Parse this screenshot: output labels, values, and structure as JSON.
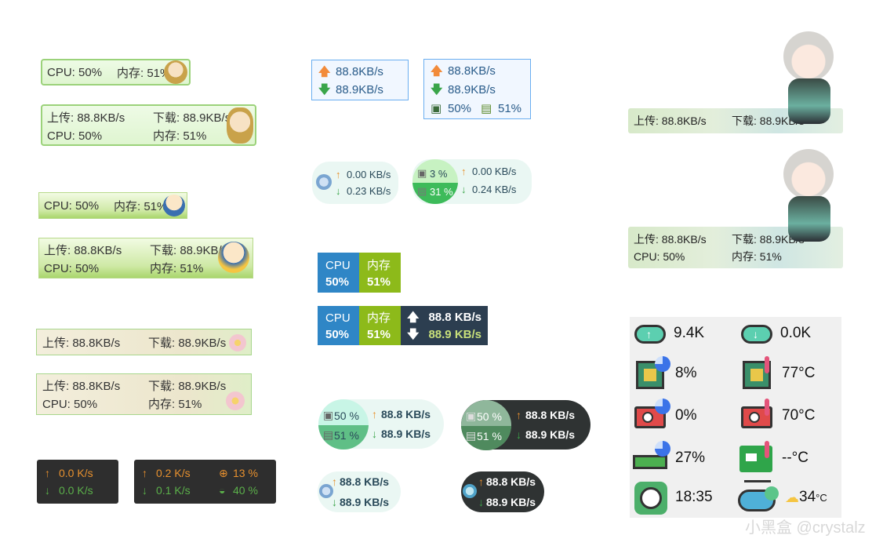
{
  "w1": {
    "cpu": "CPU: 50%",
    "mem": "内存: 51%"
  },
  "w2": {
    "up": "上传: 88.8KB/s",
    "down": "下载: 88.9KB/s",
    "cpu": "CPU: 50%",
    "mem": "内存: 51%"
  },
  "w3": {
    "cpu": "CPU: 50%",
    "mem": "内存: 51%"
  },
  "w4": {
    "up": "上传: 88.8KB/s",
    "down": "下载: 88.9KB/s",
    "cpu": "CPU: 50%",
    "mem": "内存: 51%"
  },
  "w5": {
    "up": "上传: 88.8KB/s",
    "down": "下载: 88.9KB/s"
  },
  "w6": {
    "up": "上传: 88.8KB/s",
    "down": "下载: 88.9KB/s",
    "cpu": "CPU: 50%",
    "mem": "内存: 51%"
  },
  "w7": {
    "up": "0.0 K/s",
    "down": "0.0 K/s"
  },
  "w8": {
    "up": "0.2 K/s",
    "down": "0.1 K/s",
    "cpu": "13 %",
    "mem": "40 %"
  },
  "b1": {
    "up": "88.8KB/s",
    "down": "88.9KB/s"
  },
  "b2": {
    "up": "88.8KB/s",
    "down": "88.9KB/s",
    "cpu": "50%",
    "mem": "51%"
  },
  "p1": {
    "up": "0.00 KB/s",
    "down": "0.23 KB/s"
  },
  "p2": {
    "cpu": "3 %",
    "mem": "31 %",
    "up": "0.00 KB/s",
    "down": "0.24 KB/s"
  },
  "t1": {
    "cpu_label": "CPU",
    "cpu_val": "50%",
    "mem_label": "内存",
    "mem_val": "51%"
  },
  "t2": {
    "cpu_label": "CPU",
    "cpu_val": "50%",
    "mem_label": "内存",
    "mem_val": "51%",
    "up": "88.8 KB/s",
    "down": "88.9 KB/s"
  },
  "c1": {
    "cpu": "50 %",
    "mem": "51 %",
    "up": "88.8 KB/s",
    "down": "88.9 KB/s"
  },
  "c2": {
    "cpu": "50 %",
    "mem": "51 %",
    "up": "88.8 KB/s",
    "down": "88.9 KB/s"
  },
  "c3": {
    "up": "88.8 KB/s",
    "down": "88.9 KB/s"
  },
  "c4": {
    "up": "88.8 KB/s",
    "down": "88.9 KB/s"
  },
  "k1": {
    "up": "上传: 88.8KB/s",
    "down": "下载: 88.9KB/s"
  },
  "k2": {
    "up": "上传: 88.8KB/s",
    "down": "下载: 88.9KB/s",
    "cpu": "CPU: 50%",
    "mem": "内存: 51%"
  },
  "panel": {
    "upload": "9.4K",
    "download": "0.0K",
    "cpu_usage": "8%",
    "cpu_temp": "77°C",
    "gpu_usage": "0%",
    "gpu_temp": "70°C",
    "mem_usage": "27%",
    "board_temp": "--°C",
    "time": "18:35",
    "weather_temp": "34",
    "weather_unit": "°C"
  },
  "watermark": "小黑盒 @crystalz",
  "colors": {
    "up": "#f28b3a",
    "down": "#3aa54a",
    "cpu_blue": "#2f86c6",
    "mem_green": "#8dba1a",
    "net_dark": "#2c3e50"
  }
}
